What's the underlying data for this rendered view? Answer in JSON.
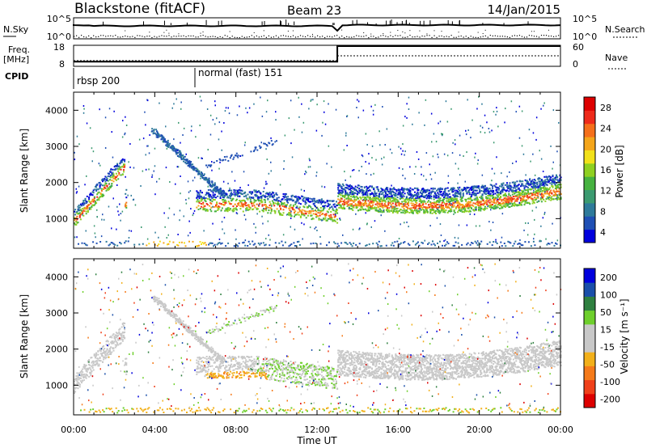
{
  "header": {
    "station": "Blackstone (fitACF)",
    "beam": "Beam 23",
    "date": "14/Jan/2015"
  },
  "top_panel": {
    "left_label": "N.Sky",
    "right_label": "N.Search",
    "left_ticks": [
      "10^5",
      "10^0"
    ],
    "right_ticks": [
      "10^5",
      "10^0"
    ]
  },
  "freq_panel": {
    "left_label_1": "Freq.",
    "left_label_2": "[MHz]",
    "right_label": "Nave",
    "left_ticks": [
      "18",
      "8"
    ],
    "right_ticks": [
      "60",
      "0"
    ]
  },
  "cpid": {
    "label": "CPID",
    "segments": [
      {
        "label": "rbsp 200"
      },
      {
        "label": "normal (fast) 151"
      }
    ]
  },
  "xaxis": {
    "label": "Time UT",
    "ticks": [
      "00:00",
      "04:00",
      "08:00",
      "12:00",
      "16:00",
      "20:00",
      "00:00"
    ]
  },
  "power_panel": {
    "ylabel": "Slant Range [km]",
    "yticks": [
      "4000",
      "3000",
      "2000",
      "1000"
    ],
    "colorbar_label": "Power [dB]",
    "colorbar_ticks": [
      "28",
      "24",
      "20",
      "16",
      "12",
      "8",
      "4"
    ],
    "colors": [
      "#0000dd",
      "#1f4fb4",
      "#2e7a9a",
      "#3b9a70",
      "#46b240",
      "#8fd021",
      "#f2e11a",
      "#f4a51a",
      "#f56f1a",
      "#ee2a1a",
      "#dd0000"
    ]
  },
  "velocity_panel": {
    "ylabel": "Slant Range [km]",
    "yticks": [
      "4000",
      "3000",
      "2000",
      "1000"
    ],
    "colorbar_label": "Velocity [m s⁻¹]",
    "colorbar_ticks": [
      "200",
      "100",
      "50",
      "15",
      "-15",
      "-50",
      "-100",
      "-200"
    ],
    "colors": [
      "#0000dd",
      "#1a4faa",
      "#2f8040",
      "#6ecf2c",
      "#c8c8c8",
      "#c8c8c8",
      "#f2b01a",
      "#f57a1a",
      "#f0401a",
      "#dd0000"
    ]
  },
  "chart_data": {
    "type": "heatmap",
    "x_range_hours": [
      0,
      24
    ],
    "y_range_km": [
      180,
      4500
    ],
    "frequency_steps": [
      {
        "start_h": 0,
        "end_h": 13,
        "mhz": 10
      },
      {
        "start_h": 13,
        "end_h": 24,
        "mhz": 18
      }
    ],
    "nave_steps": [
      {
        "start_h": 0,
        "end_h": 13,
        "value": 15
      },
      {
        "start_h": 13,
        "end_h": 24,
        "value": 30
      }
    ],
    "echo_bands": [
      {
        "region": "near-range band",
        "start_h": 0.2,
        "end_h": 24,
        "range_km": [
          250,
          400
        ]
      },
      {
        "region": "morning backscatter",
        "start_h": 0,
        "end_h": 2.5,
        "range_km": [
          900,
          2700
        ]
      },
      {
        "region": "daytime ionospheric band",
        "start_h": 6,
        "end_h": 12,
        "range_km": [
          1000,
          2000
        ]
      },
      {
        "region": "post-13 UT band",
        "start_h": 13,
        "end_h": 24,
        "range_km": [
          1000,
          2300
        ]
      }
    ]
  }
}
